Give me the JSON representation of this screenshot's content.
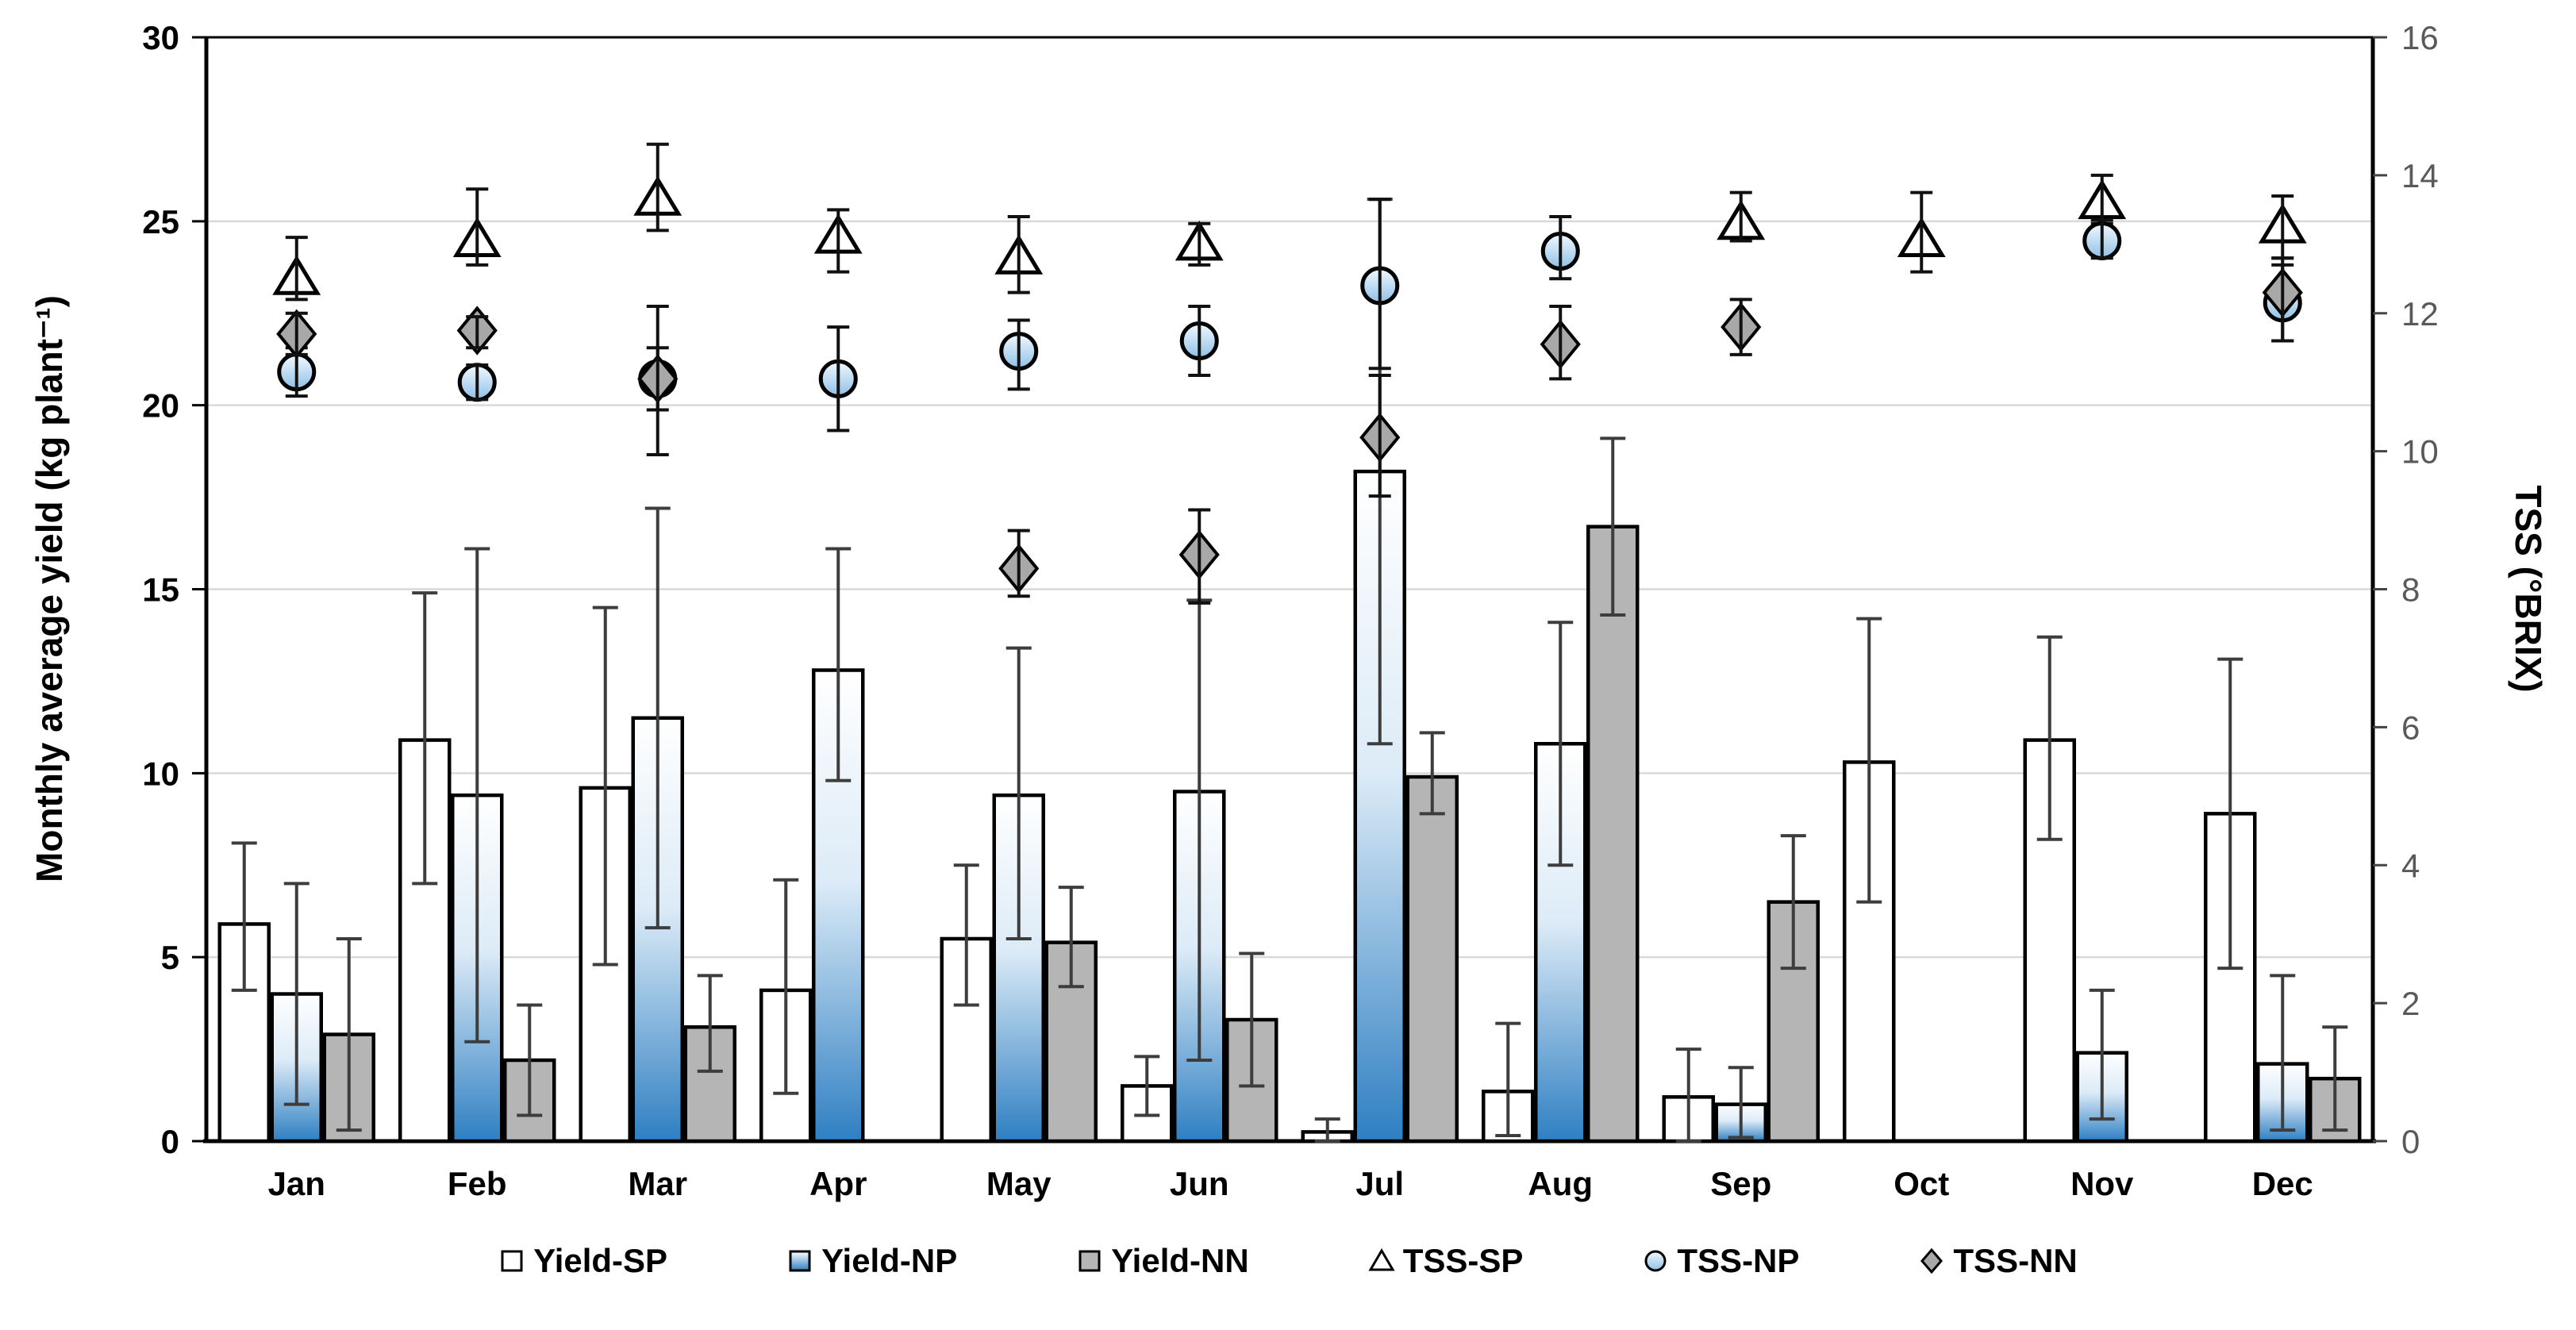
{
  "chart_data": {
    "type": "bar",
    "subtype": "grouped-bars-with-scatter-dual-axis",
    "months": [
      "Jan",
      "Feb",
      "Mar",
      "Apr",
      "May",
      "Jun",
      "Jul",
      "Aug",
      "Sep",
      "Oct",
      "Nov",
      "Dec"
    ],
    "axes": {
      "left": {
        "label": "Monthly average yield (kg plant⁻¹)",
        "min": 0,
        "max": 30,
        "ticks": [
          0,
          5,
          10,
          15,
          20,
          25,
          30
        ]
      },
      "right": {
        "label": "TSS (°BRIX)",
        "min": 0,
        "max": 16,
        "ticks": [
          0,
          2,
          4,
          6,
          8,
          10,
          12,
          14,
          16
        ]
      }
    },
    "grid_values_left_axis": [
      5,
      10,
      15,
      20,
      25
    ],
    "bar_series": [
      {
        "name": "Yield-SP",
        "style": "white",
        "values": [
          5.9,
          10.9,
          9.6,
          4.1,
          5.5,
          1.5,
          0.25,
          1.35,
          1.2,
          10.3,
          10.9,
          8.9
        ],
        "err_lo": [
          4.1,
          7.0,
          4.8,
          1.3,
          3.7,
          0.7,
          0.0,
          0.15,
          0.0,
          6.5,
          8.2,
          4.7
        ],
        "err_hi": [
          8.1,
          14.9,
          14.5,
          7.1,
          7.5,
          2.3,
          0.6,
          3.2,
          2.5,
          14.2,
          13.7,
          13.1
        ]
      },
      {
        "name": "Yield-NP",
        "style": "blue-gradient",
        "values": [
          4.0,
          9.4,
          11.5,
          12.8,
          9.4,
          9.5,
          18.2,
          10.8,
          1.0,
          null,
          2.4,
          2.1
        ],
        "err_lo": [
          1.0,
          2.7,
          5.8,
          9.8,
          5.5,
          2.2,
          10.8,
          7.5,
          0.1,
          null,
          0.6,
          0.3
        ],
        "err_hi": [
          7.0,
          16.1,
          17.2,
          16.1,
          13.4,
          14.7,
          25.6,
          14.1,
          2.0,
          null,
          4.1,
          4.5
        ]
      },
      {
        "name": "Yield-NN",
        "style": "gray",
        "values": [
          2.9,
          2.2,
          3.1,
          null,
          5.4,
          3.3,
          9.9,
          16.7,
          6.5,
          null,
          null,
          1.7
        ],
        "err_lo": [
          0.3,
          0.7,
          1.9,
          null,
          4.2,
          1.5,
          8.9,
          14.3,
          4.7,
          null,
          null,
          0.3
        ],
        "err_hi": [
          5.5,
          3.7,
          4.5,
          null,
          6.9,
          5.1,
          11.1,
          19.1,
          8.3,
          null,
          null,
          3.1
        ]
      }
    ],
    "marker_series": [
      {
        "name": "TSS-SP",
        "marker": "triangle",
        "values": [
          12.5,
          13.05,
          13.65,
          13.1,
          12.8,
          13.0,
          null,
          null,
          13.3,
          13.05,
          13.6,
          13.25
        ],
        "err_lo": [
          12.2,
          12.7,
          13.2,
          12.6,
          12.3,
          12.7,
          null,
          null,
          13.05,
          12.6,
          13.3,
          12.8
        ],
        "err_hi": [
          13.1,
          13.8,
          14.45,
          13.5,
          13.4,
          13.3,
          null,
          null,
          13.75,
          13.75,
          14.0,
          13.7
        ]
      },
      {
        "name": "TSS-NP",
        "marker": "circle",
        "values": [
          11.15,
          11.0,
          11.05,
          11.05,
          11.45,
          11.6,
          12.4,
          12.9,
          null,
          null,
          13.05,
          12.15
        ],
        "err_lo": [
          10.8,
          10.75,
          10.6,
          10.3,
          10.9,
          11.1,
          11.2,
          12.5,
          null,
          null,
          12.8,
          11.6
        ],
        "err_hi": [
          11.5,
          11.25,
          11.5,
          11.8,
          11.9,
          12.1,
          13.65,
          13.4,
          null,
          null,
          13.35,
          12.7
        ]
      },
      {
        "name": "TSS-NN",
        "marker": "diamond",
        "values": [
          11.7,
          11.75,
          11.05,
          null,
          8.3,
          8.5,
          10.2,
          11.55,
          11.8,
          null,
          null,
          12.3
        ],
        "err_lo": [
          11.4,
          11.5,
          9.95,
          null,
          7.9,
          7.8,
          9.35,
          11.05,
          11.4,
          null,
          null,
          11.6
        ],
        "err_hi": [
          12.0,
          11.95,
          12.1,
          null,
          8.85,
          9.15,
          11.1,
          12.1,
          12.2,
          null,
          null,
          12.8
        ]
      }
    ],
    "legend": [
      "Yield-SP",
      "Yield-NP",
      "Yield-NN",
      "TSS-SP",
      "TSS-NP",
      "TSS-NN"
    ],
    "colors": {
      "bar_white": "#ffffff",
      "bar_blue_top": "#ffffff",
      "bar_blue_mid": "#dcebf7",
      "bar_blue_bottom": "#2e7fc2",
      "bar_gray": "#b5b5b5",
      "marker_gray": "#a8a8a8",
      "circle_top": "#f2f9ff",
      "circle_bottom": "#8fc0e6",
      "grid": "#d9d9d9",
      "error_bar": "#3d3d3d",
      "right_axis_text": "#595959",
      "stroke": "#000000"
    },
    "legend_position": "bottom",
    "grid_on": true
  }
}
